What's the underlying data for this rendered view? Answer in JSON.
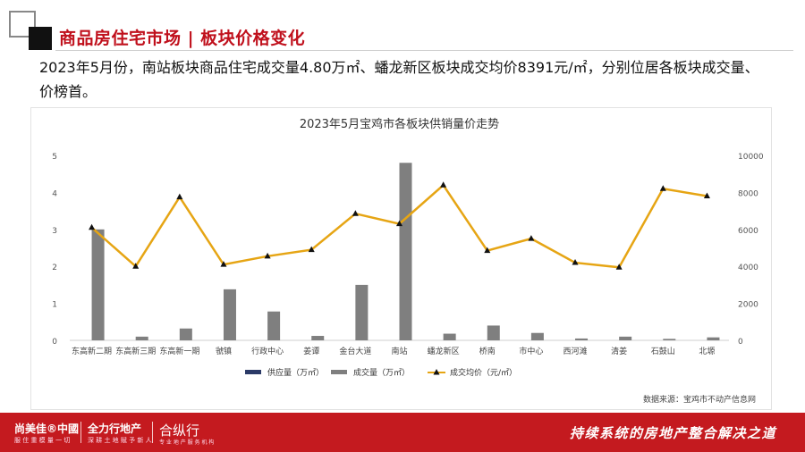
{
  "header": {
    "title": "商品房住宅市场 | 板块价格变化"
  },
  "intro": {
    "text": "2023年5月份，南站板块商品住宅成交量4.80万㎡、蟠龙新区板块成交均价8391元/㎡，分别位居各板块成交量、价榜首。"
  },
  "chart_data": {
    "type": "bar",
    "title": "2023年5月宝鸡市各板块供销量价走势",
    "categories": [
      "东高新二期",
      "东高新三期",
      "东高新一期",
      "虢镇",
      "行政中心",
      "姜谭",
      "金台大道",
      "南站",
      "蟠龙新区",
      "桥南",
      "市中心",
      "西河滩",
      "清姜",
      "石鼓山",
      "北塬"
    ],
    "series": [
      {
        "name": "供应量（万㎡）",
        "kind": "bar",
        "axis": "left",
        "color": "#2b3a67",
        "values": [
          0,
          0,
          0,
          0,
          0,
          0,
          0,
          0,
          0,
          0,
          0,
          0,
          0,
          0,
          0
        ]
      },
      {
        "name": "成交量（万㎡）",
        "kind": "bar",
        "axis": "left",
        "color": "#7f7f7f",
        "values": [
          3.0,
          0.1,
          0.32,
          1.38,
          0.78,
          0.12,
          1.5,
          4.8,
          0.18,
          0.4,
          0.2,
          0.05,
          0.1,
          0.04,
          0.08
        ]
      },
      {
        "name": "成交均价（元/㎡）",
        "kind": "line",
        "axis": "right",
        "color": "#e6a514",
        "values": [
          6100,
          4000,
          7750,
          4100,
          4550,
          4900,
          6850,
          6300,
          8391,
          4850,
          5500,
          4200,
          3950,
          8200,
          7800
        ]
      }
    ],
    "y_left": {
      "min": 0,
      "max": 5,
      "ticks": [
        0,
        1,
        2,
        3,
        4,
        5
      ]
    },
    "y_right": {
      "min": 0,
      "max": 10000,
      "ticks": [
        0,
        2000,
        4000,
        6000,
        8000,
        10000
      ]
    },
    "legend_position": "bottom",
    "source": "数据来源：宝鸡市不动产信息网"
  },
  "footer": {
    "logo1": "尚美佳®中國",
    "logo1_sub": "服 住 重 模 量 一 切",
    "logo2": "全力行地产",
    "logo2_sub": "深 耕 土 地  赋 予 新 人",
    "logo3": "合纵行",
    "logo3_sub": "专 业 地 产 服 务 机 构",
    "slogan": "持续系统的房地产整合解决之道"
  },
  "colors": {
    "brand_red": "#c41a1f",
    "title_red": "#c0101c"
  }
}
